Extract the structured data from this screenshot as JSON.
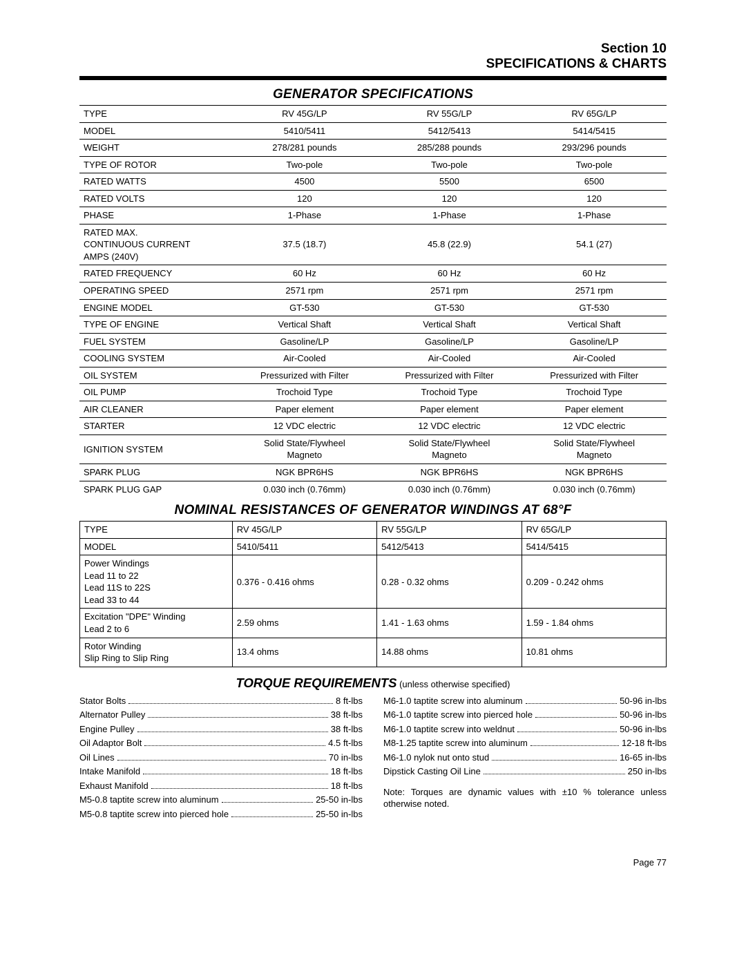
{
  "header": {
    "line1": "Section 10",
    "line2": "SPECIFICATIONS & CHARTS"
  },
  "genSpecs": {
    "title": "GENERATOR SPECIFICATIONS",
    "rows": [
      {
        "label": "TYPE",
        "v": [
          "RV 45G/LP",
          "RV 55G/LP",
          "RV 65G/LP"
        ]
      },
      {
        "label": "MODEL",
        "v": [
          "5410/5411",
          "5412/5413",
          "5414/5415"
        ]
      },
      {
        "label": "WEIGHT",
        "v": [
          "278/281 pounds",
          "285/288 pounds",
          "293/296 pounds"
        ]
      },
      {
        "label": "TYPE OF ROTOR",
        "v": [
          "Two-pole",
          "Two-pole",
          "Two-pole"
        ]
      },
      {
        "label": "RATED WATTS",
        "v": [
          "4500",
          "5500",
          "6500"
        ]
      },
      {
        "label": "RATED VOLTS",
        "v": [
          "120",
          "120",
          "120"
        ]
      },
      {
        "label": "PHASE",
        "v": [
          "1-Phase",
          "1-Phase",
          "1-Phase"
        ]
      },
      {
        "label": "RATED MAX.\nCONTINUOUS CURRENT\nAMPS (240V)",
        "v": [
          "37.5 (18.7)",
          "45.8 (22.9)",
          "54.1 (27)"
        ]
      },
      {
        "label": "RATED FREQUENCY",
        "v": [
          "60 Hz",
          "60 Hz",
          "60 Hz"
        ]
      },
      {
        "label": "OPERATING SPEED",
        "v": [
          "2571 rpm",
          "2571 rpm",
          "2571 rpm"
        ]
      },
      {
        "label": "ENGINE MODEL",
        "v": [
          "GT-530",
          "GT-530",
          "GT-530"
        ]
      },
      {
        "label": "TYPE OF ENGINE",
        "v": [
          "Vertical Shaft",
          "Vertical Shaft",
          "Vertical Shaft"
        ]
      },
      {
        "label": "FUEL SYSTEM",
        "v": [
          "Gasoline/LP",
          "Gasoline/LP",
          "Gasoline/LP"
        ]
      },
      {
        "label": "COOLING SYSTEM",
        "v": [
          "Air-Cooled",
          "Air-Cooled",
          "Air-Cooled"
        ]
      },
      {
        "label": "OIL SYSTEM",
        "v": [
          "Pressurized with Filter",
          "Pressurized with Filter",
          "Pressurized with Filter"
        ]
      },
      {
        "label": "OIL PUMP",
        "v": [
          "Trochoid Type",
          "Trochoid Type",
          "Trochoid Type"
        ]
      },
      {
        "label": "AIR CLEANER",
        "v": [
          "Paper element",
          "Paper element",
          "Paper element"
        ]
      },
      {
        "label": "STARTER",
        "v": [
          "12 VDC electric",
          "12 VDC electric",
          "12 VDC electric"
        ]
      },
      {
        "label": "IGNITION SYSTEM",
        "v": [
          "Solid State/Flywheel\nMagneto",
          "Solid State/Flywheel\nMagneto",
          "Solid State/Flywheel\nMagneto"
        ]
      },
      {
        "label": "SPARK PLUG",
        "v": [
          "NGK BPR6HS",
          "NGK BPR6HS",
          "NGK BPR6HS"
        ]
      },
      {
        "label": "SPARK PLUG GAP",
        "v": [
          "0.030 inch (0.76mm)",
          "0.030 inch (0.76mm)",
          "0.030 inch (0.76mm)"
        ]
      }
    ]
  },
  "resistances": {
    "title": "NOMINAL RESISTANCES OF GENERATOR WINDINGS AT 68°F",
    "rows": [
      {
        "label": "TYPE",
        "v": [
          "RV 45G/LP",
          "RV 55G/LP",
          "RV 65G/LP"
        ]
      },
      {
        "label": "MODEL",
        "v": [
          "5410/5411",
          "5412/5413",
          "5414/5415"
        ]
      },
      {
        "label": "Power Windings\nLead 11 to 22\nLead 11S to 22S\nLead 33 to 44",
        "v": [
          "0.376 - 0.416 ohms",
          "0.28 - 0.32 ohms",
          "0.209 - 0.242 ohms"
        ]
      },
      {
        "label": "Excitation \"DPE\" Winding\nLead 2 to 6",
        "v": [
          "2.59 ohms",
          "1.41 - 1.63 ohms",
          "1.59 - 1.84 ohms"
        ]
      },
      {
        "label": "Rotor Winding\nSlip Ring to Slip Ring",
        "v": [
          "13.4 ohms",
          "14.88 ohms",
          "10.81 ohms"
        ]
      }
    ]
  },
  "torque": {
    "titleMain": "TORQUE REQUIREMENTS",
    "titleSub": " (unless otherwise specified)",
    "left": [
      {
        "l": "Stator Bolts",
        "v": "8 ft-lbs"
      },
      {
        "l": "Alternator Pulley",
        "v": "38 ft-lbs"
      },
      {
        "l": "Engine Pulley",
        "v": "38 ft-lbs"
      },
      {
        "l": "Oil Adaptor Bolt",
        "v": "4.5 ft-lbs"
      },
      {
        "l": "Oil Lines",
        "v": "70 in-lbs"
      },
      {
        "l": "Intake Manifold",
        "v": "18 ft-lbs"
      },
      {
        "l": "Exhaust Manifold",
        "v": "18 ft-lbs"
      },
      {
        "l": "M5-0.8 taptite screw into aluminum",
        "v": "25-50 in-lbs"
      },
      {
        "l": "M5-0.8 taptite screw into pierced hole",
        "v": "25-50 in-lbs"
      }
    ],
    "right": [
      {
        "l": "M6-1.0 taptite screw into aluminum",
        "v": "50-96 in-lbs"
      },
      {
        "l": "M6-1.0 taptite screw into pierced hole",
        "v": "50-96 in-lbs"
      },
      {
        "l": "M6-1.0 taptite screw into weldnut",
        "v": "50-96 in-lbs"
      },
      {
        "l": "M8-1.25 taptite screw into aluminum",
        "v": "12-18 ft-lbs"
      },
      {
        "l": "M6-1.0 nylok nut onto stud",
        "v": "16-65 in-lbs"
      },
      {
        "l": "Dipstick Casting Oil Line",
        "v": "250 in-lbs"
      }
    ],
    "note": "Note: Torques are dynamic values with ±10 % tolerance unless otherwise noted."
  },
  "pageNumber": "Page 77"
}
